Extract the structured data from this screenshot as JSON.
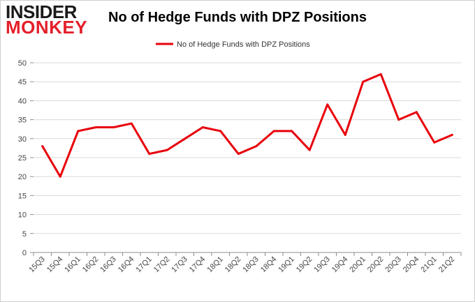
{
  "logo": {
    "line1": "INSIDER",
    "line2": "MONKEY"
  },
  "chart_data": {
    "type": "line",
    "title": "No of Hedge Funds with DPZ Positions",
    "categories": [
      "15Q3",
      "15Q4",
      "16Q1",
      "16Q2",
      "16Q3",
      "16Q4",
      "17Q1",
      "17Q2",
      "17Q3",
      "17Q4",
      "18Q1",
      "18Q2",
      "18Q3",
      "18Q4",
      "19Q1",
      "19Q2",
      "19Q3",
      "19Q4",
      "20Q1",
      "20Q2",
      "20Q3",
      "20Q4",
      "21Q1",
      "21Q2"
    ],
    "series": [
      {
        "name": "No of Hedge Funds with DPZ Positions",
        "color": "#e8000b",
        "values": [
          28,
          20,
          32,
          33,
          33,
          34,
          26,
          27,
          30,
          33,
          32,
          26,
          28,
          32,
          32,
          27,
          39,
          31,
          45,
          47,
          35,
          37,
          29,
          31
        ]
      }
    ],
    "ylim": [
      0,
      50
    ],
    "yticks": [
      0,
      5,
      10,
      15,
      20,
      25,
      30,
      35,
      40,
      45,
      50
    ],
    "grid": "horizontal",
    "legend": "top-center",
    "xlabel": "",
    "ylabel": ""
  }
}
